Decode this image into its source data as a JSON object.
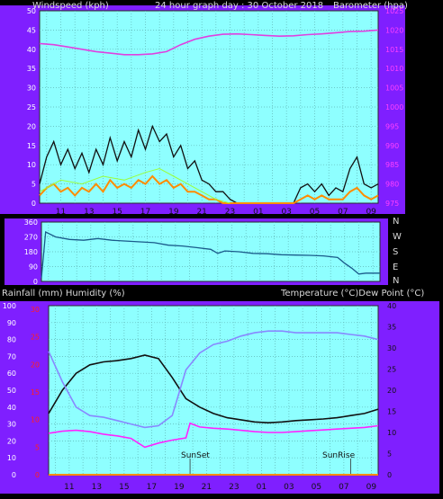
{
  "colors": {
    "frame": "#7f1fff",
    "plot_bg": "#8effff",
    "grid": "#5fb5b5",
    "wind_gust": "#111111",
    "wind_avg": "#ff8c00",
    "wind_extra": "#9aff3a",
    "barometer": "#e040e0",
    "direction": "#1a5a8a",
    "temperature": "#111111",
    "humidity": "#8888ff",
    "dew_point": "#ff22ff",
    "rain": "#ff8c00",
    "tick_pink": "#ff40ff",
    "tick_red": "#ff2020",
    "tick_black": "#111111",
    "tick_white": "#ffffff"
  },
  "header": {
    "left": "Windspeed (kph)",
    "center": "24 hour graph day : 30 October 2018",
    "right": "Barometer (hpa)"
  },
  "direction_labels": [
    "N",
    "W",
    "S",
    "E",
    "N"
  ],
  "mid_header": {
    "left": "Rainfall (mm)  Humidity (%)",
    "right": "Temperature (°C)Dew Point (°C)"
  },
  "annotations": {
    "sunset": "SunSet",
    "sunrise": "SunRise"
  },
  "chart_data": [
    {
      "type": "line",
      "title": "24 hour graph day : 30 October 2018",
      "x_ticks": [
        "11",
        "13",
        "15",
        "17",
        "19",
        "21",
        "23",
        "01",
        "03",
        "05",
        "07",
        "09"
      ],
      "y_left": {
        "label": "Windspeed (kph)",
        "ticks": [
          0,
          5,
          10,
          15,
          20,
          25,
          30,
          35,
          40,
          45,
          50
        ],
        "lim": [
          0,
          50
        ]
      },
      "y_right": {
        "label": "Barometer (hpa)",
        "ticks": [
          975,
          980,
          985,
          990,
          995,
          1000,
          1005,
          1010,
          1015,
          1020,
          1025
        ],
        "lim": [
          975,
          1025
        ]
      },
      "series": [
        {
          "axis": "right",
          "x": [
            9.5,
            10.5,
            11.5,
            12.5,
            13.5,
            14.5,
            15.5,
            16.5,
            17.5,
            18.5,
            19.5,
            20.5,
            21.5,
            22.5,
            23.5,
            24.5,
            25.5,
            26.5,
            27.5,
            28.5,
            29.5,
            30.5,
            31.5,
            32.5,
            33.5
          ],
          "values": [
            1016.5,
            1016.2,
            1015.6,
            1015.0,
            1014.4,
            1014.0,
            1013.6,
            1013.6,
            1013.8,
            1014.4,
            1016.2,
            1017.6,
            1018.4,
            1018.9,
            1019.0,
            1018.8,
            1018.6,
            1018.4,
            1018.5,
            1018.8,
            1019.0,
            1019.3,
            1019.6,
            1019.7,
            1020.0
          ]
        },
        {
          "axis": "left",
          "x": [
            9.5,
            10.0,
            10.5,
            11.0,
            11.5,
            12.0,
            12.5,
            13.0,
            13.5,
            14.0,
            14.5,
            15.0,
            15.5,
            16.0,
            16.5,
            17.0,
            17.5,
            18.0,
            18.5,
            19.0,
            19.5,
            20.0,
            20.5,
            21.0,
            21.5,
            22.0,
            22.5,
            23.0,
            23.5,
            24.5,
            25.5,
            26.5,
            27.5,
            28.0,
            28.5,
            29.0,
            29.5,
            30.0,
            30.5,
            31.0,
            31.5,
            32.0,
            32.5,
            33.0,
            33.5
          ],
          "values": [
            5,
            12,
            16,
            10,
            14,
            9,
            13,
            8,
            14,
            10,
            17,
            11,
            16,
            12,
            19,
            14,
            20,
            16,
            18,
            12,
            15,
            9,
            11,
            6,
            5,
            3,
            3,
            1,
            0,
            0,
            0,
            0,
            0,
            4,
            5,
            3,
            5,
            2,
            4,
            3,
            9,
            12,
            5,
            4,
            5
          ]
        },
        {
          "axis": "left",
          "x": [
            9.5,
            10.0,
            10.5,
            11.0,
            11.5,
            12.0,
            12.5,
            13.0,
            13.5,
            14.0,
            14.5,
            15.0,
            15.5,
            16.0,
            16.5,
            17.0,
            17.5,
            18.0,
            18.5,
            19.0,
            19.5,
            20.0,
            20.5,
            21.0,
            21.5,
            22.0,
            22.5,
            23.0,
            23.5,
            24.5,
            25.5,
            26.5,
            27.5,
            28.0,
            28.5,
            29.0,
            29.5,
            30.0,
            30.5,
            31.0,
            31.5,
            32.0,
            32.5,
            33.0,
            33.5
          ],
          "values": [
            2,
            4,
            5,
            3,
            4,
            2,
            4,
            3,
            5,
            3,
            6,
            4,
            5,
            4,
            6,
            5,
            7,
            5,
            6,
            4,
            5,
            3,
            3,
            2,
            1,
            1,
            0,
            0,
            0,
            0,
            0,
            0,
            0,
            1,
            2,
            1,
            2,
            1,
            1,
            1,
            3,
            4,
            2,
            1,
            2
          ]
        },
        {
          "axis": "left",
          "x": [
            9.5,
            11.0,
            12.5,
            14.0,
            15.5,
            17.0,
            18.0,
            19.0,
            20.0,
            21.0,
            22.0,
            23.0
          ],
          "values": [
            3,
            6,
            5,
            7,
            6,
            8,
            9,
            7,
            5,
            3,
            1,
            0
          ]
        }
      ]
    },
    {
      "type": "line",
      "y_ticks": [
        "360",
        "270",
        "180",
        "90",
        "0"
      ],
      "y_lim": [
        0,
        360
      ],
      "side_labels": [
        "N",
        "W",
        "S",
        "E",
        "N"
      ],
      "series": [
        {
          "x": [
            9.5,
            9.8,
            10.5,
            11.5,
            12.5,
            13.5,
            14.5,
            15.5,
            16.5,
            17.5,
            18.5,
            19.5,
            20.5,
            21.5,
            22.0,
            22.5,
            23.5,
            24.5,
            25.5,
            26.5,
            27.5,
            28.5,
            29.5,
            30.0,
            30.5,
            31.0,
            31.5,
            32.0,
            32.5,
            33.5
          ],
          "values": [
            20,
            300,
            270,
            255,
            250,
            260,
            250,
            245,
            240,
            235,
            220,
            215,
            205,
            195,
            170,
            185,
            180,
            170,
            168,
            162,
            160,
            158,
            155,
            150,
            145,
            110,
            80,
            45,
            50,
            50
          ]
        }
      ]
    },
    {
      "type": "line",
      "x_ticks": [
        "11",
        "13",
        "15",
        "17",
        "19",
        "21",
        "23",
        "01",
        "03",
        "05",
        "07",
        "09"
      ],
      "y_left": {
        "label": "Rainfall (mm)  Humidity (%)",
        "humidity_ticks": [
          0,
          10,
          20,
          30,
          40,
          50,
          60,
          70,
          80,
          90,
          100
        ],
        "rain_ticks": [
          0,
          5,
          10,
          15,
          20,
          25,
          30
        ]
      },
      "y_right": {
        "label": "Temperature (°C)Dew Point (°C)",
        "ticks": [
          0,
          5,
          10,
          15,
          20,
          25,
          30,
          35,
          40
        ],
        "lim": [
          0,
          40
        ]
      },
      "annotations": [
        {
          "label": "SunSet",
          "x": 19.8
        },
        {
          "label": "SunRise",
          "x": 31.5
        }
      ],
      "series": [
        {
          "axis": "right",
          "x": [
            9.5,
            10.5,
            11.5,
            12.5,
            13.5,
            14.5,
            15.5,
            16.5,
            17.5,
            18.5,
            19.5,
            20.5,
            21.5,
            22.5,
            23.5,
            24.5,
            25.5,
            26.5,
            27.5,
            28.5,
            29.5,
            30.5,
            31.5,
            32.5,
            33.5
          ],
          "values": [
            14.5,
            20,
            24,
            26,
            26.7,
            27,
            27.5,
            28.3,
            27.5,
            23,
            18,
            16,
            14.5,
            13.5,
            13,
            12.5,
            12.3,
            12.5,
            12.8,
            13,
            13.2,
            13.5,
            14,
            14.5,
            15.5
          ]
        },
        {
          "axis": "left",
          "x": [
            9.5,
            10.5,
            11.5,
            12.5,
            13.5,
            14.5,
            15.5,
            16.5,
            17.5,
            18.5,
            19.5,
            20.5,
            21.5,
            22.5,
            23.5,
            24.5,
            25.5,
            26.5,
            27.5,
            28.5,
            29.5,
            30.5,
            31.5,
            32.5,
            33.5
          ],
          "values": [
            73,
            55,
            40,
            35,
            34,
            32,
            30,
            28,
            29,
            35,
            62,
            72,
            77,
            79,
            82,
            84,
            85,
            85,
            84,
            84,
            84,
            84,
            83,
            82,
            80
          ]
        },
        {
          "axis": "right",
          "x": [
            9.5,
            10.5,
            11.5,
            12.5,
            13.5,
            14.5,
            15.5,
            16.5,
            17.5,
            18.5,
            19.5,
            19.8,
            20.5,
            21.5,
            22.5,
            23.5,
            24.5,
            25.5,
            26.5,
            27.5,
            28.5,
            29.5,
            30.5,
            31.5,
            32.5,
            33.5
          ],
          "values": [
            9.8,
            10.3,
            10.5,
            10.2,
            9.6,
            9.2,
            8.6,
            6.5,
            7.5,
            8.2,
            8.7,
            12.2,
            11.3,
            11.0,
            10.8,
            10.5,
            10.2,
            10.0,
            10.0,
            10.2,
            10.4,
            10.6,
            10.8,
            11.0,
            11.2,
            11.6
          ]
        },
        {
          "axis": "left",
          "x": [
            9.5,
            33.5
          ],
          "values": [
            0,
            0
          ]
        }
      ]
    }
  ]
}
